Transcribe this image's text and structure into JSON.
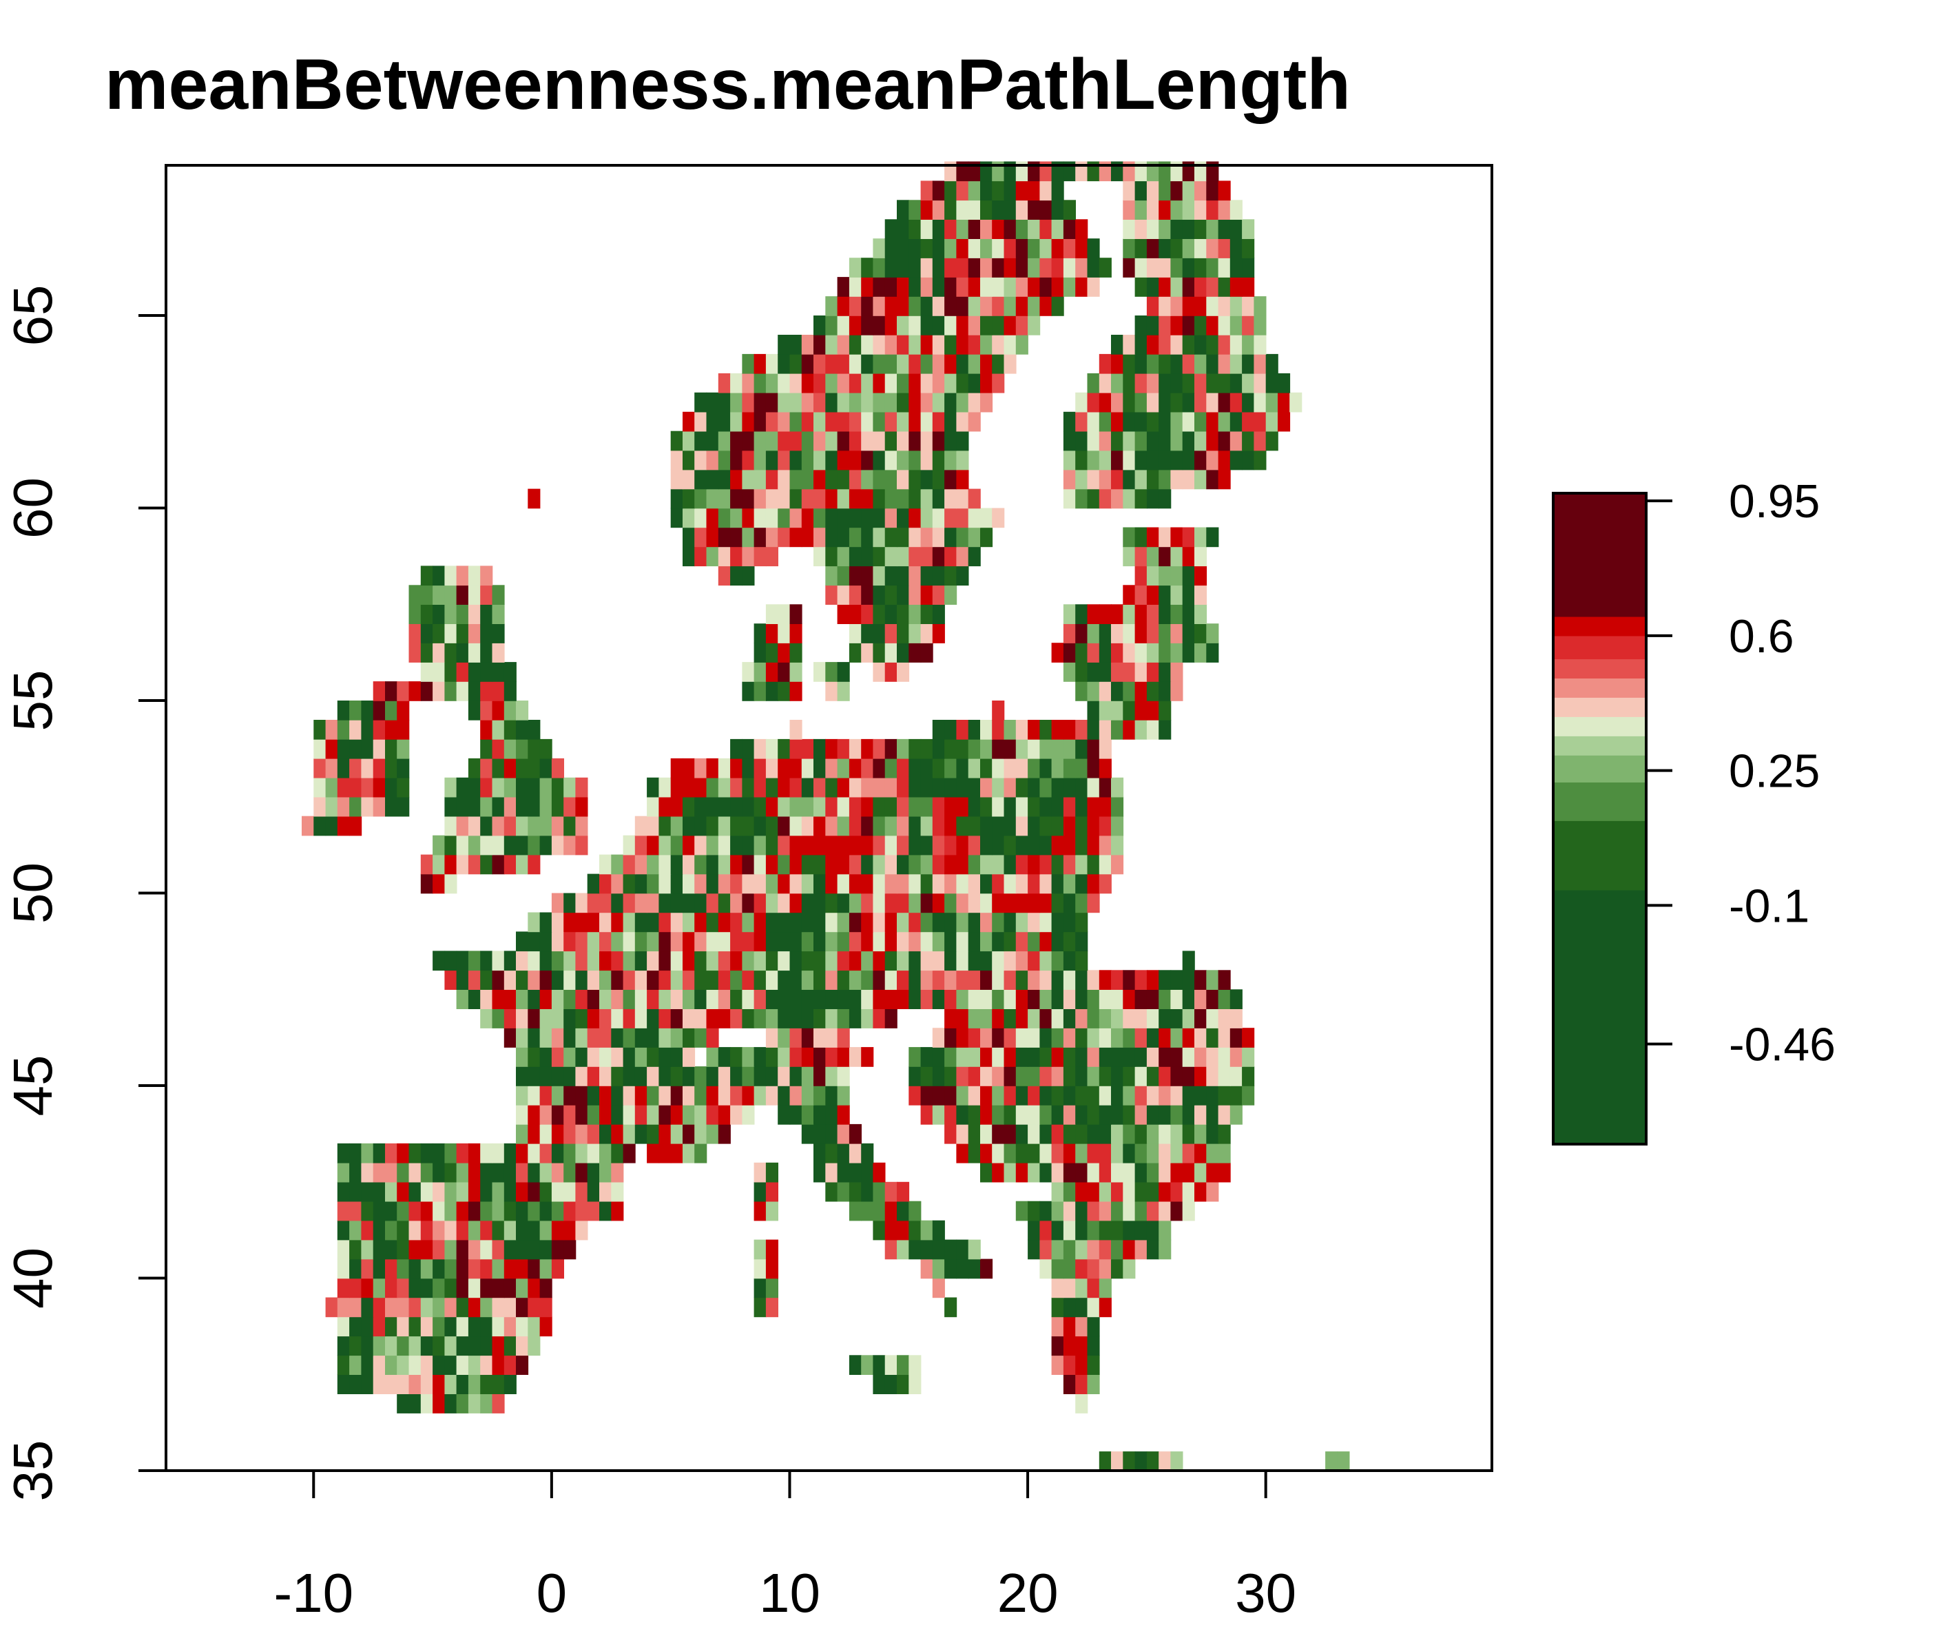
{
  "title": "meanBetweenness.meanPathLength",
  "map": {
    "x_ticks": [
      -10,
      0,
      10,
      20,
      30
    ],
    "x_tick_labels": [
      "-10",
      "0",
      "10",
      "20",
      "30"
    ],
    "y_ticks": [
      35,
      40,
      45,
      50,
      55,
      60,
      65
    ],
    "y_tick_labels": [
      "35",
      "40",
      "45",
      "50",
      "55",
      "60",
      "65"
    ],
    "x_range": [
      -16.2,
      39.5
    ],
    "y_range": [
      35.0,
      68.9
    ],
    "cell_size_deg": 0.5,
    "grid": false
  },
  "legend": {
    "position": "right",
    "range": [
      -0.72,
      0.97
    ],
    "tick_values": [
      0.95,
      0.6,
      0.25,
      -0.1,
      -0.46
    ],
    "tick_labels": [
      "0.95",
      "0.6",
      "0.25",
      "-0.1",
      "-0.46"
    ],
    "bands": [
      {
        "from": -0.72,
        "to": -0.06,
        "color": "#155820"
      },
      {
        "from": -0.06,
        "to": 0.12,
        "color": "#23661c"
      },
      {
        "from": 0.12,
        "to": 0.22,
        "color": "#4e8e40"
      },
      {
        "from": 0.22,
        "to": 0.29,
        "color": "#7fb46e"
      },
      {
        "from": 0.29,
        "to": 0.34,
        "color": "#a8cf96"
      },
      {
        "from": 0.34,
        "to": 0.39,
        "color": "#ddebc8"
      },
      {
        "from": 0.39,
        "to": 0.44,
        "color": "#f6c7b8"
      },
      {
        "from": 0.44,
        "to": 0.49,
        "color": "#ef8e85"
      },
      {
        "from": 0.49,
        "to": 0.54,
        "color": "#e5504e"
      },
      {
        "from": 0.54,
        "to": 0.6,
        "color": "#dc2a2c"
      },
      {
        "from": 0.6,
        "to": 0.65,
        "color": "#cc0000"
      },
      {
        "from": 0.65,
        "to": 0.97,
        "color": "#66000d"
      }
    ]
  }
}
